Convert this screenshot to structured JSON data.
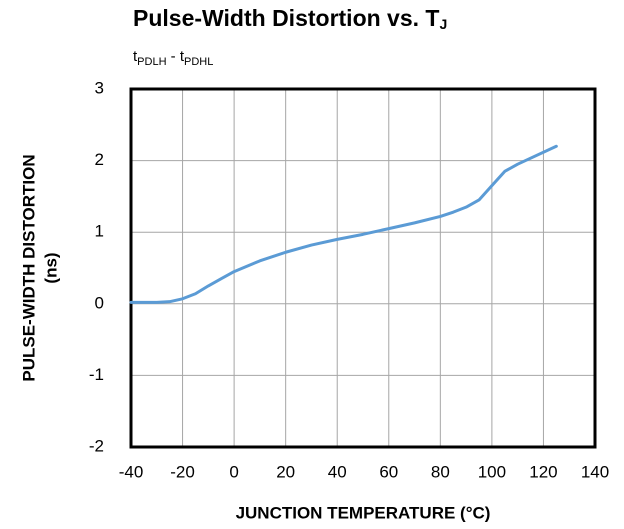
{
  "chart_data": {
    "type": "line",
    "title": [
      "Pulse-Width Distortion vs. T",
      "J"
    ],
    "subtitle": [
      "t",
      "PDLH",
      " - t",
      "PDHL"
    ],
    "xlabel": "JUNCTION TEMPERATURE (°C)",
    "ylabel": [
      "PULSE-WIDTH DISTORTION",
      "(ns)"
    ],
    "x": [
      -40,
      -35,
      -30,
      -25,
      -20,
      -15,
      -10,
      -5,
      0,
      10,
      20,
      30,
      40,
      50,
      60,
      70,
      80,
      85,
      90,
      95,
      100,
      105,
      110,
      125
    ],
    "series": [
      {
        "name": "tPDLH - tPDHL",
        "color": "#5b9bd5",
        "values": [
          0.02,
          0.02,
          0.02,
          0.03,
          0.07,
          0.14,
          0.25,
          0.35,
          0.45,
          0.6,
          0.72,
          0.82,
          0.9,
          0.97,
          1.05,
          1.13,
          1.22,
          1.28,
          1.35,
          1.45,
          1.65,
          1.85,
          1.95,
          2.2
        ]
      }
    ],
    "xlim": [
      -40,
      140
    ],
    "xticks": [
      -40,
      -20,
      0,
      20,
      40,
      60,
      80,
      100,
      120,
      140
    ],
    "ylim": [
      -2,
      3
    ],
    "yticks": [
      -2,
      -1,
      0,
      1,
      2,
      3
    ],
    "grid": true
  }
}
